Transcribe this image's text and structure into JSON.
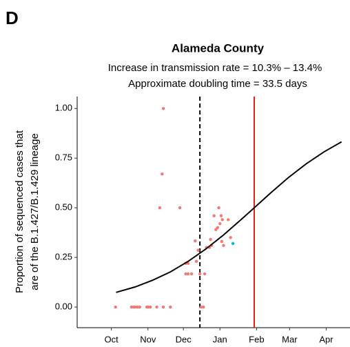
{
  "chart_data": {
    "type": "scatter",
    "panel_label": "D",
    "title": "Alameda County",
    "subtitle": [
      "Increase in transmission rate = 10.3% – 13.4%",
      "Approximate doubling time = 33.5 days"
    ],
    "ylabel": [
      "Proportion of sequenced cases that",
      "are of the B.1.427/B.1.429 lineage"
    ],
    "xlim": [
      -29,
      197.5
    ],
    "ylim": [
      -0.104,
      1.06
    ],
    "xticks": [
      {
        "value": 0,
        "label": "Oct"
      },
      {
        "value": 31,
        "label": "Nov"
      },
      {
        "value": 61,
        "label": "Dec"
      },
      {
        "value": 92,
        "label": "Jan"
      },
      {
        "value": 123,
        "label": "Feb"
      },
      {
        "value": 151,
        "label": "Mar"
      },
      {
        "value": 182,
        "label": "Apr"
      }
    ],
    "yticks": [
      {
        "value": 0,
        "label": "0.00"
      },
      {
        "value": 0.25,
        "label": "0.25"
      },
      {
        "value": 0.5,
        "label": "0.50"
      },
      {
        "value": 0.75,
        "label": "0.75"
      },
      {
        "value": 1,
        "label": "1.00"
      }
    ],
    "vlines": [
      {
        "x": 75,
        "color": "#000000",
        "dashed": true
      },
      {
        "x": 121,
        "color": "#e41a1c",
        "dashed": false
      }
    ],
    "series": [
      {
        "mode": "points",
        "color": "#f8766d",
        "x": [
          3.5,
          17,
          19,
          20,
          22,
          24,
          30,
          31,
          33,
          38.5,
          44,
          50,
          44,
          43,
          41,
          58,
          63,
          65,
          63,
          65,
          68,
          71,
          72,
          73.5,
          75,
          76,
          78,
          79,
          80.5,
          83,
          85,
          84,
          87,
          88.5,
          90,
          91,
          93,
          94,
          92,
          93.5,
          95,
          99,
          101
        ],
        "values": [
          0,
          0,
          0,
          0,
          0,
          0,
          0,
          0,
          0,
          0,
          0,
          0,
          1,
          0.67,
          0.5,
          0.5,
          0.22,
          0.22,
          0.167,
          0.167,
          0.167,
          0.333,
          0.23,
          0.286,
          0.167,
          0,
          0,
          0.167,
          0.3,
          0.3,
          0.31,
          0.34,
          0.46,
          0.39,
          0.4,
          0.5,
          0.46,
          0.44,
          0.42,
          0.33,
          0.31,
          0.44,
          0.35
        ]
      },
      {
        "mode": "points",
        "color": "#00bfc4",
        "x": [
          103
        ],
        "values": [
          0.32
        ]
      },
      {
        "mode": "line",
        "color": "#000000",
        "x": [
          4,
          20,
          35,
          50,
          65,
          80,
          95,
          110,
          121,
          135,
          150,
          165,
          180,
          195
        ],
        "values": [
          0.074,
          0.101,
          0.135,
          0.177,
          0.23,
          0.292,
          0.363,
          0.441,
          0.5,
          0.575,
          0.652,
          0.721,
          0.781,
          0.832
        ]
      }
    ]
  }
}
